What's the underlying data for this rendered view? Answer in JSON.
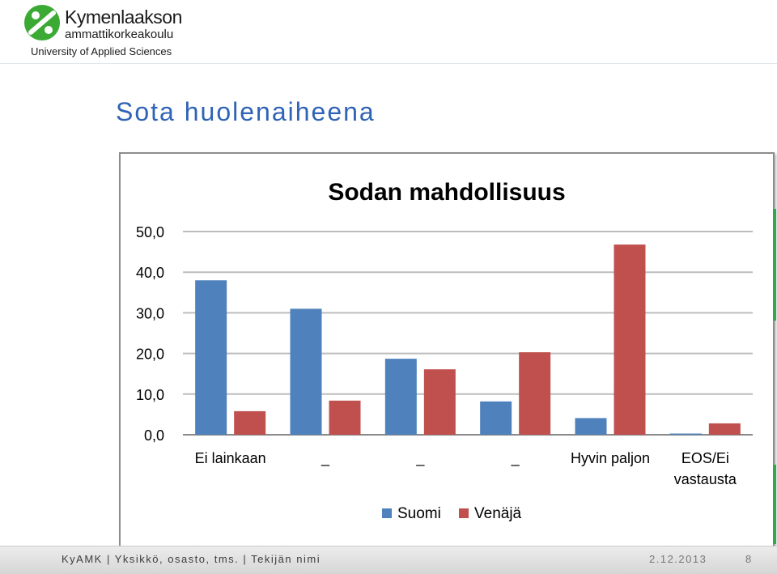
{
  "header": {
    "logo_name": "Kymenlaakson",
    "logo_sub": "ammattikorkeakoulu",
    "logo_english": "University of Applied Sciences",
    "logo_color": "#3aaa35"
  },
  "slide": {
    "title": "Sota huolenaiheena"
  },
  "chart_data": {
    "type": "bar",
    "title": "Sodan mahdollisuus",
    "categories": [
      "Ei lainkaan",
      "_",
      "_",
      "_",
      "Hyvin paljon",
      "EOS/Ei vastausta"
    ],
    "series": [
      {
        "name": "Suomi",
        "color": "#4f81bd",
        "values": [
          38.0,
          31.0,
          18.7,
          8.2,
          4.1,
          0.3
        ]
      },
      {
        "name": "Venäjä",
        "color": "#c0504d",
        "values": [
          5.8,
          8.4,
          16.1,
          20.3,
          46.8,
          2.8
        ]
      }
    ],
    "ylim": [
      0,
      50
    ],
    "yticks": [
      "0,0",
      "10,0",
      "20,0",
      "30,0",
      "40,0",
      "50,0"
    ],
    "grid": true,
    "legend_position": "bottom"
  },
  "footer": {
    "text": "KyAMK | Yksikkö, osasto, tms. | Tekijän nimi",
    "date": "2.12.2013",
    "page": "8"
  }
}
